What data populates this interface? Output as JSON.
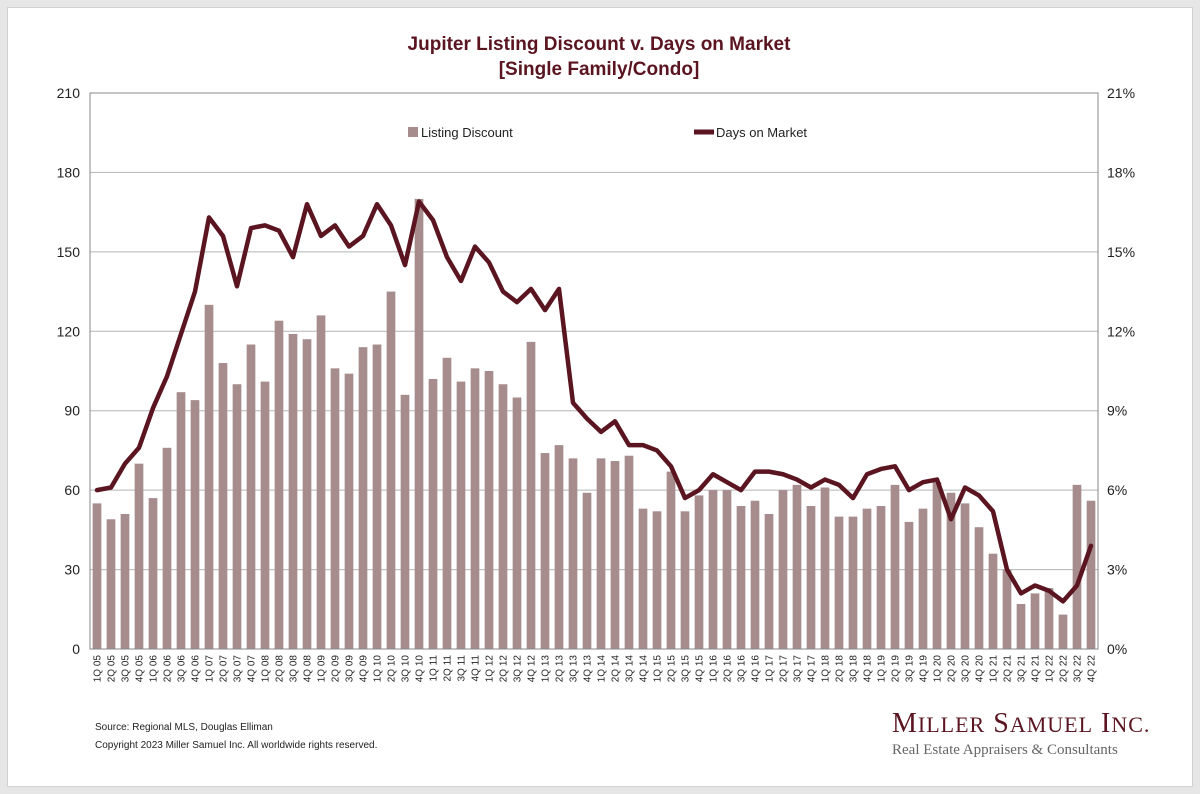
{
  "chart_data": {
    "type": "bar+line",
    "title": "Jupiter Listing Discount v. Days on Market",
    "subtitle": "[Single Family/Condo]",
    "categories": [
      "1Q 05",
      "2Q 05",
      "3Q 05",
      "4Q 05",
      "1Q 06",
      "2Q 06",
      "3Q 06",
      "4Q 06",
      "1Q 07",
      "2Q 07",
      "3Q 07",
      "4Q 07",
      "1Q 08",
      "2Q 08",
      "3Q 08",
      "4Q 08",
      "1Q 09",
      "2Q 09",
      "3Q 09",
      "4Q 09",
      "1Q 10",
      "2Q 10",
      "3Q 10",
      "4Q 10",
      "1Q 11",
      "2Q 11",
      "3Q 11",
      "4Q 11",
      "1Q 12",
      "2Q 12",
      "3Q 12",
      "4Q 12",
      "1Q 13",
      "2Q 13",
      "3Q 13",
      "4Q 13",
      "1Q 14",
      "2Q 14",
      "3Q 14",
      "4Q 14",
      "1Q 15",
      "2Q 15",
      "3Q 15",
      "4Q 15",
      "1Q 16",
      "2Q 16",
      "3Q 16",
      "4Q 16",
      "1Q 17",
      "2Q 17",
      "3Q 17",
      "4Q 17",
      "1Q 18",
      "2Q 18",
      "3Q 18",
      "4Q 18",
      "1Q 19",
      "2Q 19",
      "3Q 19",
      "4Q 19",
      "1Q 20",
      "2Q 20",
      "3Q 20",
      "4Q 20",
      "1Q 21",
      "2Q 21",
      "3Q 21",
      "4Q 21",
      "1Q 22",
      "2Q 22",
      "3Q 22",
      "4Q 22"
    ],
    "series": [
      {
        "name": "Listing Discount",
        "type": "bar",
        "axis": "right",
        "unit": "%",
        "color": "#a68c8c",
        "values": [
          5.5,
          4.9,
          5.1,
          7.0,
          5.7,
          7.6,
          9.7,
          9.4,
          13.0,
          10.8,
          10.0,
          11.5,
          10.1,
          12.4,
          11.9,
          11.7,
          12.6,
          10.6,
          10.4,
          11.4,
          11.5,
          13.5,
          9.6,
          17.0,
          10.2,
          11.0,
          10.1,
          10.6,
          10.5,
          10.0,
          9.5,
          11.6,
          7.4,
          7.7,
          7.2,
          5.9,
          7.2,
          7.1,
          7.3,
          5.3,
          5.2,
          6.7,
          5.2,
          5.8,
          6.0,
          6.0,
          5.4,
          5.6,
          5.1,
          6.0,
          6.2,
          5.4,
          6.1,
          5.0,
          5.0,
          5.3,
          5.4,
          6.2,
          4.8,
          5.3,
          6.3,
          5.9,
          5.5,
          4.6,
          3.6,
          3.0,
          1.7,
          2.1,
          2.3,
          1.3,
          6.2,
          5.6
        ]
      },
      {
        "name": "Days on Market",
        "type": "line",
        "axis": "left",
        "color": "#5a1520",
        "values": [
          60,
          61,
          70,
          76,
          91,
          103,
          119,
          135,
          163,
          156,
          137,
          159,
          160,
          158,
          148,
          168,
          156,
          160,
          152,
          156,
          168,
          160,
          145,
          169,
          162,
          148,
          139,
          152,
          146,
          135,
          131,
          136,
          128,
          136,
          93,
          87,
          82,
          86,
          77,
          77,
          75,
          69,
          57,
          60,
          66,
          63,
          60,
          67,
          67,
          66,
          64,
          61,
          64,
          62,
          57,
          66,
          68,
          69,
          60,
          63,
          64,
          49,
          61,
          58,
          52,
          30,
          21,
          24,
          22,
          18,
          24,
          39
        ]
      }
    ],
    "y_left": {
      "min": 0,
      "max": 210,
      "ticks": [
        "0",
        "30",
        "60",
        "90",
        "120",
        "150",
        "180",
        "210"
      ]
    },
    "y_right": {
      "min": 0,
      "max": 21,
      "ticks": [
        "0%",
        "3%",
        "6%",
        "9%",
        "12%",
        "15%",
        "18%",
        "21%"
      ]
    },
    "grid": true,
    "legend": "top-center"
  },
  "footer": {
    "source": "Source: Regional MLS, Douglas Elliman",
    "copyright": "Copyright 2023 Miller Samuel Inc. All worldwide rights reserved."
  },
  "logo": {
    "tagline": "Real Estate Appraisers & Consultants"
  }
}
